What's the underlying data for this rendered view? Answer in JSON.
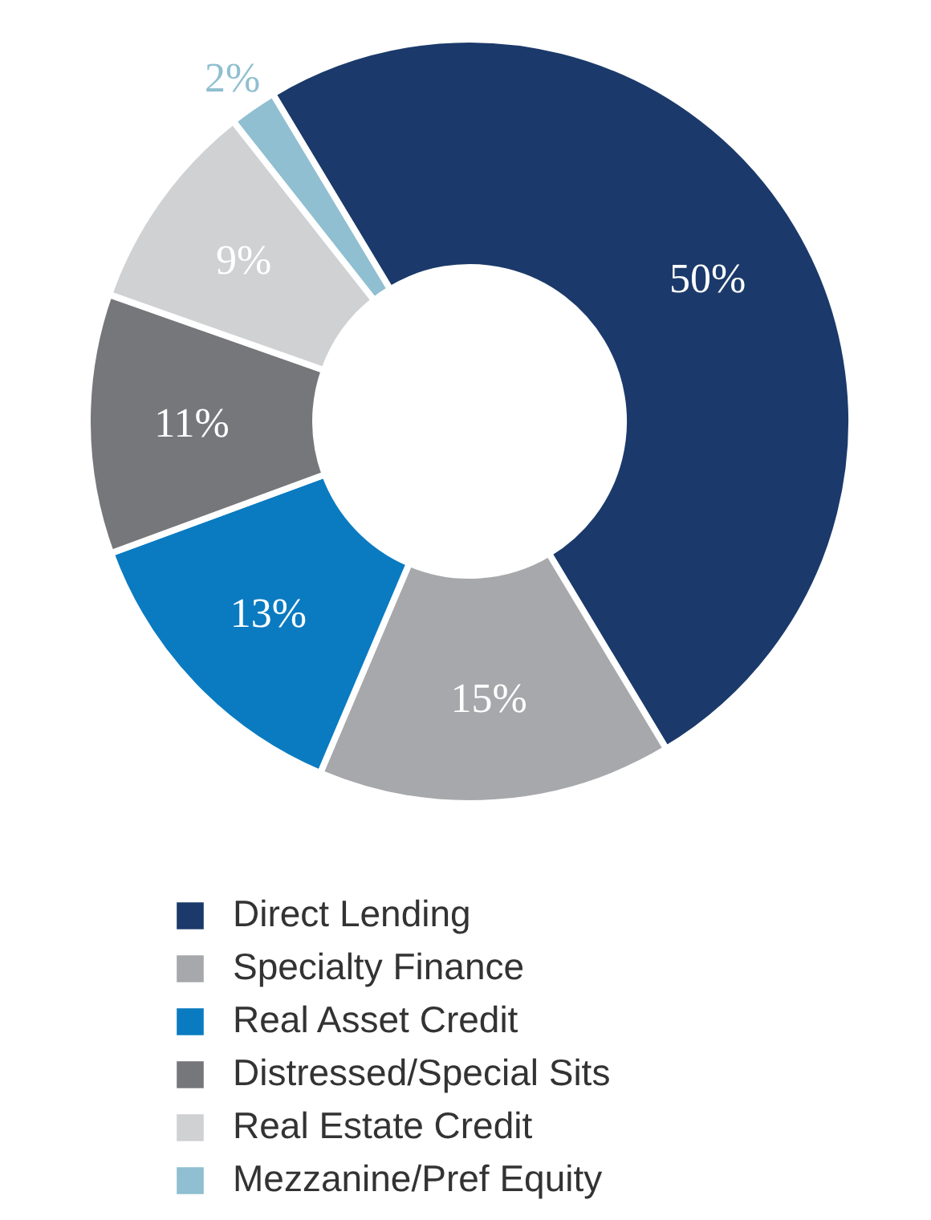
{
  "chart_data": {
    "type": "donut",
    "categories": [
      "Direct Lending",
      "Specialty Finance",
      "Real Asset Credit",
      "Distressed/Special Sits",
      "Real Estate Credit",
      "Mezzanine/Pref Equity"
    ],
    "values": [
      50,
      15,
      13,
      11,
      9,
      2
    ],
    "value_labels": [
      "50%",
      "15%",
      "13%",
      "11%",
      "9%",
      "2%"
    ],
    "colors": [
      "#1b3a6b",
      "#a7a8ab",
      "#0a7bc1",
      "#76777b",
      "#d0d1d3",
      "#8fbfd0"
    ],
    "legend": "bottom"
  }
}
